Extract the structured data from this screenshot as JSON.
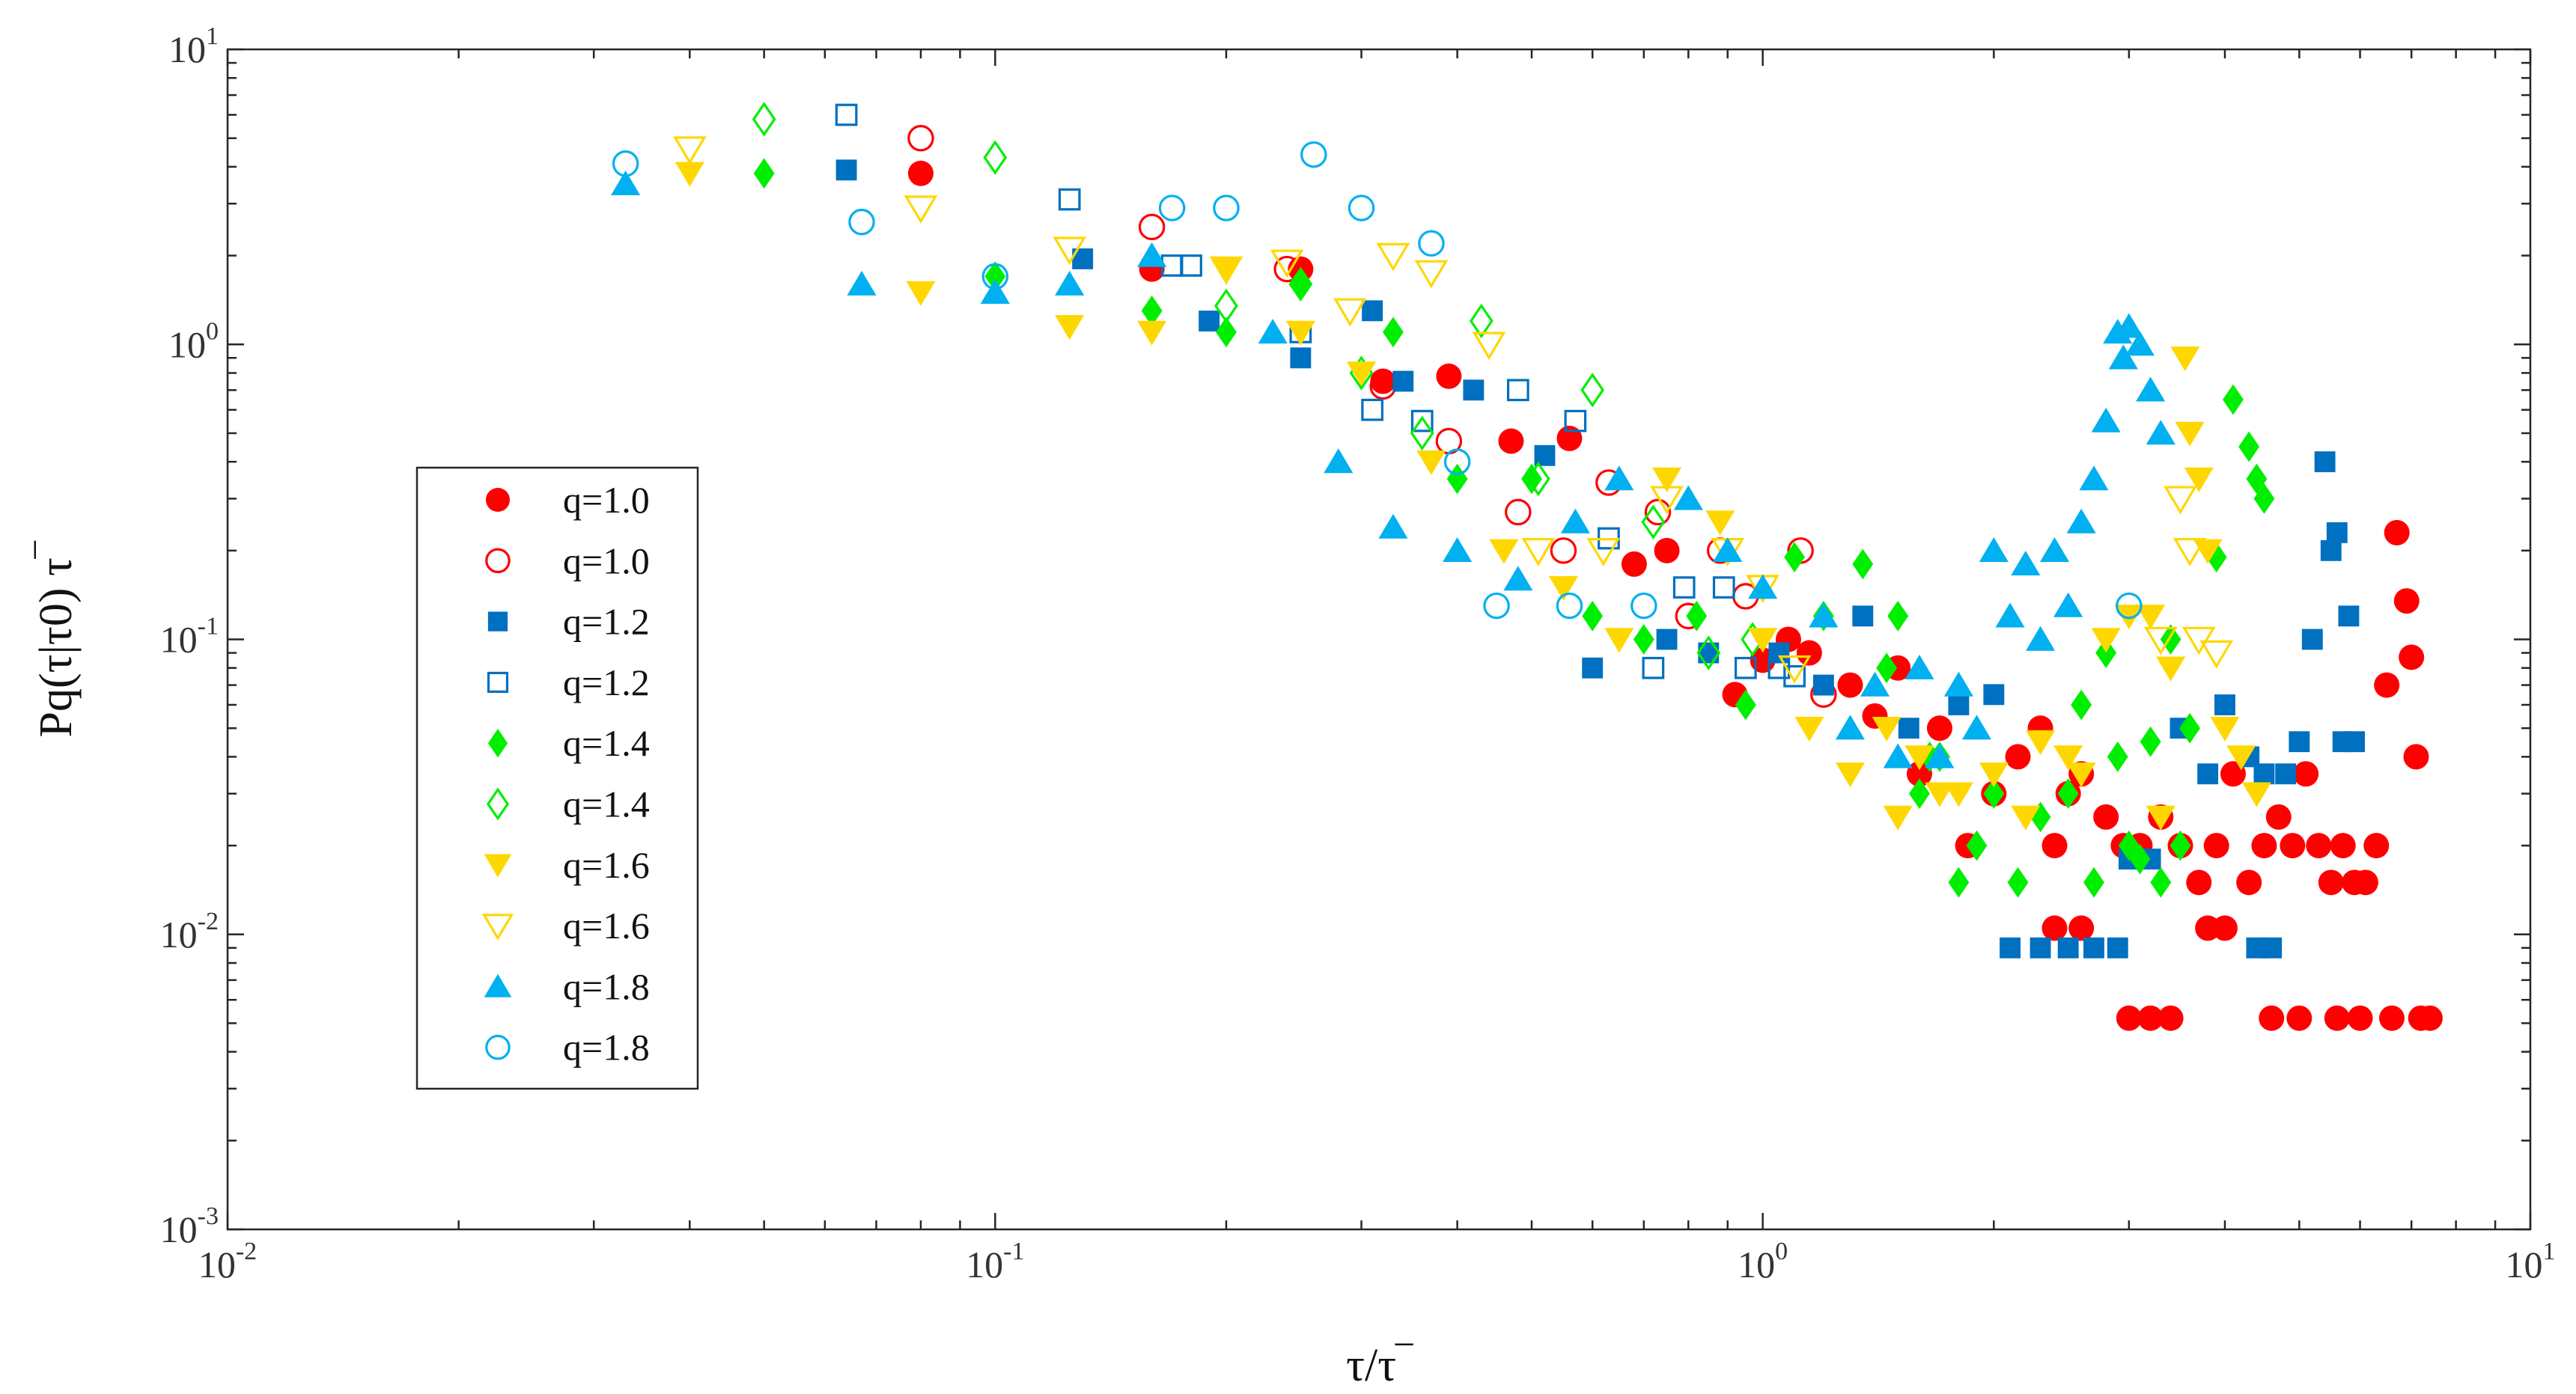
{
  "chart_data": {
    "type": "scatter",
    "xscale": "log",
    "yscale": "log",
    "xlim": [
      0.01,
      10
    ],
    "ylim": [
      0.001,
      10
    ],
    "xlabel": "τ/τ‾",
    "ylabel": "Pq(τ|τ0) τ‾",
    "xticks": [
      {
        "mantissa": "10",
        "exp": "-2",
        "value": 0.01
      },
      {
        "mantissa": "10",
        "exp": "-1",
        "value": 0.1
      },
      {
        "mantissa": "10",
        "exp": "0",
        "value": 1
      },
      {
        "mantissa": "10",
        "exp": "1",
        "value": 10
      }
    ],
    "yticks": [
      {
        "mantissa": "10",
        "exp": "-3",
        "value": 0.001
      },
      {
        "mantissa": "10",
        "exp": "-2",
        "value": 0.01
      },
      {
        "mantissa": "10",
        "exp": "-1",
        "value": 0.1
      },
      {
        "mantissa": "10",
        "exp": "0",
        "value": 1
      },
      {
        "mantissa": "10",
        "exp": "1",
        "value": 10
      }
    ],
    "grid": false,
    "legend_position": "left",
    "series": [
      {
        "name": "q=1.0",
        "marker": "circle",
        "filled": true,
        "color": "#ff0000",
        "x": [
          0.08,
          0.16,
          0.25,
          0.32,
          0.39,
          0.47,
          0.56,
          0.68,
          0.75,
          0.92,
          1.0,
          1.08,
          1.15,
          1.3,
          1.4,
          1.5,
          1.6,
          1.7,
          1.85,
          2.0,
          2.15,
          2.3,
          2.4,
          2.5,
          2.6,
          2.8,
          2.95,
          3.1,
          3.3,
          3.5,
          3.7,
          3.9,
          4.1,
          4.3,
          4.5,
          4.7,
          4.9,
          5.1,
          5.3,
          5.5,
          5.7,
          5.9,
          6.1,
          6.3,
          6.5,
          6.7,
          6.9,
          7.0,
          7.1,
          7.2,
          7.4,
          3.0,
          3.2,
          3.4,
          4.6,
          5.0,
          5.6,
          6.0,
          6.6,
          2.4,
          2.6,
          3.8,
          4.0
        ],
        "y": [
          3.8,
          1.8,
          1.8,
          0.75,
          0.78,
          0.47,
          0.48,
          0.18,
          0.2,
          0.065,
          0.085,
          0.1,
          0.09,
          0.07,
          0.055,
          0.08,
          0.035,
          0.05,
          0.02,
          0.03,
          0.04,
          0.05,
          0.02,
          0.03,
          0.035,
          0.025,
          0.02,
          0.02,
          0.025,
          0.02,
          0.015,
          0.02,
          0.035,
          0.015,
          0.02,
          0.025,
          0.02,
          0.035,
          0.02,
          0.015,
          0.02,
          0.015,
          0.015,
          0.02,
          0.07,
          0.23,
          0.135,
          0.087,
          0.04,
          0.0052,
          0.0052,
          0.0052,
          0.0052,
          0.0052,
          0.0052,
          0.0052,
          0.0052,
          0.0052,
          0.0052,
          0.0105,
          0.0105,
          0.0105,
          0.0105
        ]
      },
      {
        "name": "q=1.0",
        "marker": "circle",
        "filled": false,
        "color": "#ff0000",
        "x": [
          0.08,
          0.16,
          0.24,
          0.32,
          0.39,
          0.48,
          0.55,
          0.63,
          0.73,
          0.8,
          0.88,
          0.95,
          1.12,
          1.2
        ],
        "y": [
          5.0,
          2.5,
          1.8,
          0.72,
          0.47,
          0.27,
          0.2,
          0.34,
          0.27,
          0.12,
          0.2,
          0.14,
          0.2,
          0.065
        ]
      },
      {
        "name": "q=1.2",
        "marker": "square",
        "filled": true,
        "color": "#0070c0",
        "x": [
          0.064,
          0.13,
          0.19,
          0.25,
          0.31,
          0.34,
          0.42,
          0.52,
          0.6,
          0.75,
          0.85,
          1.05,
          1.2,
          1.35,
          1.55,
          1.8,
          2.0,
          2.1,
          2.3,
          2.5,
          2.7,
          2.9,
          3.0,
          3.2,
          3.5,
          3.8,
          4.0,
          4.3,
          4.5,
          4.8,
          5.0,
          5.2,
          5.4,
          5.5,
          5.6,
          5.7,
          5.9,
          4.4,
          4.6,
          5.8
        ],
        "y": [
          3.9,
          1.95,
          1.2,
          0.9,
          1.3,
          0.75,
          0.7,
          0.42,
          0.08,
          0.1,
          0.09,
          0.09,
          0.07,
          0.12,
          0.05,
          0.06,
          0.065,
          0.009,
          0.009,
          0.009,
          0.009,
          0.009,
          0.018,
          0.018,
          0.05,
          0.035,
          0.06,
          0.04,
          0.035,
          0.035,
          0.045,
          0.1,
          0.4,
          0.2,
          0.23,
          0.045,
          0.045,
          0.009,
          0.009,
          0.12
        ]
      },
      {
        "name": "q=1.2",
        "marker": "square",
        "filled": false,
        "color": "#0070c0",
        "x": [
          0.064,
          0.125,
          0.17,
          0.18,
          0.25,
          0.31,
          0.36,
          0.48,
          0.57,
          0.63,
          0.72,
          0.79,
          0.89,
          0.95,
          1.05,
          1.1
        ],
        "y": [
          6.0,
          3.1,
          1.85,
          1.85,
          1.1,
          0.6,
          0.55,
          0.7,
          0.55,
          0.22,
          0.08,
          0.15,
          0.15,
          0.08,
          0.08,
          0.075
        ]
      },
      {
        "name": "q=1.4",
        "marker": "diamond",
        "filled": true,
        "color": "#00ee00",
        "x": [
          0.05,
          0.1,
          0.16,
          0.2,
          0.25,
          0.33,
          0.4,
          0.5,
          0.6,
          0.7,
          0.82,
          0.95,
          1.1,
          1.2,
          1.35,
          1.5,
          1.6,
          1.7,
          1.8,
          1.9,
          2.0,
          2.15,
          2.3,
          2.5,
          2.7,
          2.9,
          3.0,
          3.2,
          3.4,
          3.6,
          3.9,
          4.1,
          4.3,
          4.4,
          4.5,
          3.1,
          3.3,
          3.5,
          2.6,
          2.8,
          1.45,
          1.65
        ],
        "y": [
          3.8,
          1.7,
          1.3,
          1.1,
          1.6,
          1.1,
          0.35,
          0.35,
          0.12,
          0.1,
          0.12,
          0.06,
          0.19,
          0.12,
          0.18,
          0.12,
          0.03,
          0.04,
          0.015,
          0.02,
          0.03,
          0.015,
          0.025,
          0.03,
          0.015,
          0.04,
          0.02,
          0.045,
          0.1,
          0.05,
          0.19,
          0.65,
          0.45,
          0.35,
          0.3,
          0.018,
          0.015,
          0.02,
          0.06,
          0.09,
          0.08,
          0.04
        ]
      },
      {
        "name": "q=1.4",
        "marker": "diamond",
        "filled": false,
        "color": "#00ee00",
        "x": [
          0.05,
          0.1,
          0.2,
          0.25,
          0.3,
          0.36,
          0.43,
          0.51,
          0.6,
          0.72,
          0.85,
          0.97
        ],
        "y": [
          5.8,
          4.3,
          1.35,
          1.6,
          0.8,
          0.5,
          1.2,
          0.35,
          0.7,
          0.25,
          0.09,
          0.1
        ]
      },
      {
        "name": "q=1.6",
        "marker": "triangle-down",
        "filled": true,
        "color": "#ffd700",
        "x": [
          0.04,
          0.08,
          0.125,
          0.16,
          0.2,
          0.25,
          0.3,
          0.37,
          0.46,
          0.55,
          0.65,
          0.75,
          0.88,
          1.0,
          1.15,
          1.3,
          1.45,
          1.6,
          1.8,
          2.0,
          2.2,
          2.5,
          2.8,
          3.0,
          3.2,
          3.4,
          3.55,
          3.6,
          3.7,
          3.8,
          4.0,
          4.2,
          4.4,
          3.3,
          2.6,
          2.3,
          1.7,
          1.5
        ],
        "y": [
          3.8,
          1.5,
          1.15,
          1.1,
          1.8,
          1.1,
          0.8,
          0.4,
          0.2,
          0.15,
          0.1,
          0.35,
          0.25,
          0.1,
          0.05,
          0.035,
          0.05,
          0.04,
          0.03,
          0.035,
          0.025,
          0.04,
          0.1,
          0.12,
          0.12,
          0.08,
          0.9,
          0.5,
          0.35,
          0.2,
          0.05,
          0.04,
          0.03,
          0.025,
          0.035,
          0.045,
          0.03,
          0.025
        ]
      },
      {
        "name": "q=1.6",
        "marker": "triangle-down",
        "filled": false,
        "color": "#ffd700",
        "x": [
          0.04,
          0.08,
          0.125,
          0.2,
          0.24,
          0.29,
          0.33,
          0.37,
          0.44,
          0.51,
          0.62,
          0.75,
          0.9,
          1.0,
          1.1,
          3.3,
          3.5,
          3.6,
          3.7,
          3.9
        ],
        "y": [
          4.6,
          2.9,
          2.1,
          1.8,
          1.9,
          1.3,
          2.0,
          1.75,
          1.0,
          0.2,
          0.2,
          0.3,
          0.2,
          0.15,
          0.08,
          0.1,
          0.3,
          0.2,
          0.1,
          0.09
        ]
      },
      {
        "name": "q=1.8",
        "marker": "triangle-up",
        "filled": true,
        "color": "#00b0f0",
        "x": [
          0.033,
          0.067,
          0.1,
          0.125,
          0.16,
          0.23,
          0.28,
          0.33,
          0.4,
          0.48,
          0.57,
          0.65,
          0.8,
          0.9,
          1.0,
          1.2,
          1.4,
          1.6,
          1.8,
          2.0,
          2.2,
          2.4,
          2.6,
          2.7,
          2.8,
          2.9,
          3.0,
          3.1,
          3.2,
          3.3,
          2.5,
          2.3,
          2.1,
          1.9,
          1.7,
          1.5,
          1.3,
          2.95
        ],
        "y": [
          3.5,
          1.6,
          1.5,
          1.6,
          2.0,
          1.1,
          0.4,
          0.24,
          0.2,
          0.16,
          0.25,
          0.35,
          0.3,
          0.2,
          0.15,
          0.12,
          0.07,
          0.08,
          0.07,
          0.2,
          0.18,
          0.2,
          0.25,
          0.35,
          0.55,
          1.1,
          1.15,
          1.0,
          0.7,
          0.5,
          0.13,
          0.1,
          0.12,
          0.05,
          0.04,
          0.04,
          0.05,
          0.9
        ]
      },
      {
        "name": "q=1.8",
        "marker": "circle",
        "filled": false,
        "color": "#00b0f0",
        "x": [
          0.033,
          0.067,
          0.1,
          0.17,
          0.2,
          0.26,
          0.3,
          0.37,
          0.4,
          0.45,
          0.56,
          0.7,
          3.0
        ],
        "y": [
          4.1,
          2.6,
          1.7,
          2.9,
          2.9,
          4.4,
          2.9,
          2.2,
          0.4,
          0.13,
          0.13,
          0.13,
          0.13
        ]
      }
    ]
  }
}
